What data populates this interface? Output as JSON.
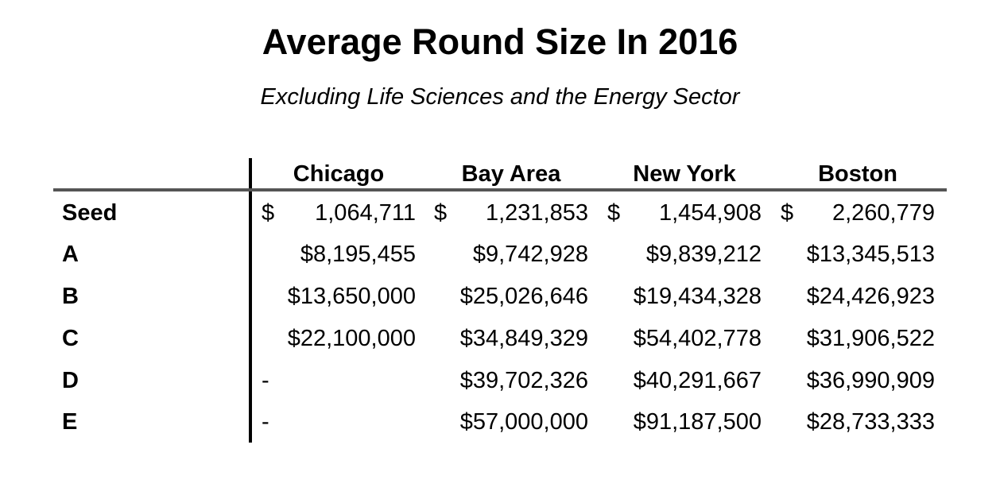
{
  "chart_data": {
    "type": "table",
    "title": "Average Round Size In 2016",
    "subtitle": "Excluding Life Sciences and the Energy Sector",
    "columns": [
      "Chicago",
      "Bay Area",
      "New York",
      "Boston"
    ],
    "rows": [
      {
        "label": "Seed",
        "cells": [
          {
            "cur": "$",
            "amt": "1,064,711"
          },
          {
            "cur": "$",
            "amt": "1,231,853"
          },
          {
            "cur": "$",
            "amt": "1,454,908"
          },
          {
            "cur": "$",
            "amt": "2,260,779"
          }
        ]
      },
      {
        "label": "A",
        "cells": [
          {
            "cur": "",
            "amt": "$8,195,455"
          },
          {
            "cur": "",
            "amt": "$9,742,928"
          },
          {
            "cur": "",
            "amt": "$9,839,212"
          },
          {
            "cur": "",
            "amt": "$13,345,513"
          }
        ]
      },
      {
        "label": "B",
        "cells": [
          {
            "cur": "",
            "amt": "$13,650,000"
          },
          {
            "cur": "",
            "amt": "$25,026,646"
          },
          {
            "cur": "",
            "amt": "$19,434,328"
          },
          {
            "cur": "",
            "amt": "$24,426,923"
          }
        ]
      },
      {
        "label": "C",
        "cells": [
          {
            "cur": "",
            "amt": "$22,100,000"
          },
          {
            "cur": "",
            "amt": "$34,849,329"
          },
          {
            "cur": "",
            "amt": "$54,402,778"
          },
          {
            "cur": "",
            "amt": "$31,906,522"
          }
        ]
      },
      {
        "label": "D",
        "cells": [
          {
            "cur": "-",
            "amt": ""
          },
          {
            "cur": "",
            "amt": "$39,702,326"
          },
          {
            "cur": "",
            "amt": "$40,291,667"
          },
          {
            "cur": "",
            "amt": "$36,990,909"
          }
        ]
      },
      {
        "label": "E",
        "cells": [
          {
            "cur": "-",
            "amt": ""
          },
          {
            "cur": "",
            "amt": "$57,000,000"
          },
          {
            "cur": "",
            "amt": "$91,187,500"
          },
          {
            "cur": "",
            "amt": "$28,733,333"
          }
        ]
      }
    ]
  }
}
